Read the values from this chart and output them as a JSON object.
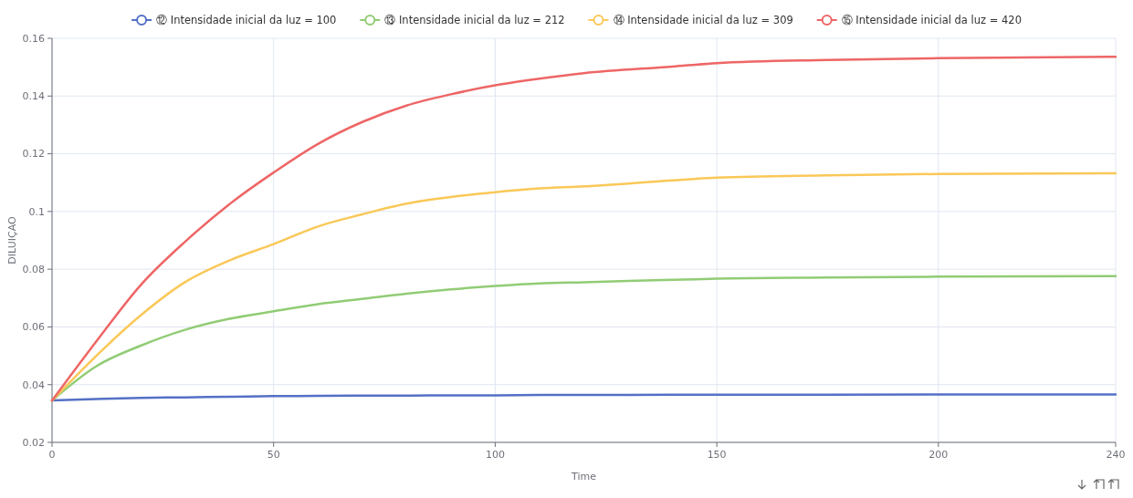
{
  "chart_data": {
    "type": "line",
    "xlabel": "Time",
    "ylabel": "DILUIÇÃO",
    "xlim": [
      0,
      240
    ],
    "xticks": [
      0,
      50,
      100,
      150,
      200,
      240
    ],
    "ylim": [
      0.02,
      0.16
    ],
    "yticks": [
      0.02,
      0.04,
      0.06,
      0.08,
      0.1,
      0.12,
      0.14,
      0.16
    ],
    "grid": true,
    "legend": "top",
    "marker": "none",
    "line_style": "solid",
    "x": [
      0,
      10,
      20,
      30,
      40,
      50,
      60,
      70,
      80,
      90,
      100,
      110,
      120,
      140,
      150,
      175,
      200,
      240
    ],
    "series": [
      {
        "name": "⑫ Intensidade inicial da luz = 100",
        "color": "#5470c6",
        "values": [
          0.0345,
          0.035,
          0.0354,
          0.0356,
          0.0358,
          0.036,
          0.0361,
          0.0362,
          0.0362,
          0.0363,
          0.0363,
          0.0364,
          0.0364,
          0.0365,
          0.0365,
          0.0365,
          0.0366,
          0.0366
        ]
      },
      {
        "name": "⑬ Intensidade inicial da luz = 212",
        "color": "#91cc75",
        "values": [
          0.0345,
          0.0464,
          0.0535,
          0.059,
          0.0628,
          0.0654,
          0.0679,
          0.0697,
          0.0715,
          0.073,
          0.0742,
          0.0751,
          0.0755,
          0.0763,
          0.0767,
          0.0771,
          0.0774,
          0.0776
        ]
      },
      {
        "name": "⑭ Intensidade inicial da luz = 309",
        "color": "#fac858",
        "values": [
          0.0345,
          0.05,
          0.064,
          0.0755,
          0.083,
          0.0887,
          0.0948,
          0.099,
          0.1027,
          0.105,
          0.1067,
          0.108,
          0.1087,
          0.1108,
          0.1117,
          0.1125,
          0.113,
          0.1132
        ]
      },
      {
        "name": "⑮ Intensidade inicial da luz = 420",
        "color": "#ee6666",
        "values": [
          0.0345,
          0.055,
          0.0745,
          0.0895,
          0.1025,
          0.1135,
          0.1234,
          0.131,
          0.1367,
          0.1406,
          0.1437,
          0.146,
          0.1479,
          0.1502,
          0.1514,
          0.1525,
          0.1531,
          0.1536
        ]
      }
    ]
  }
}
